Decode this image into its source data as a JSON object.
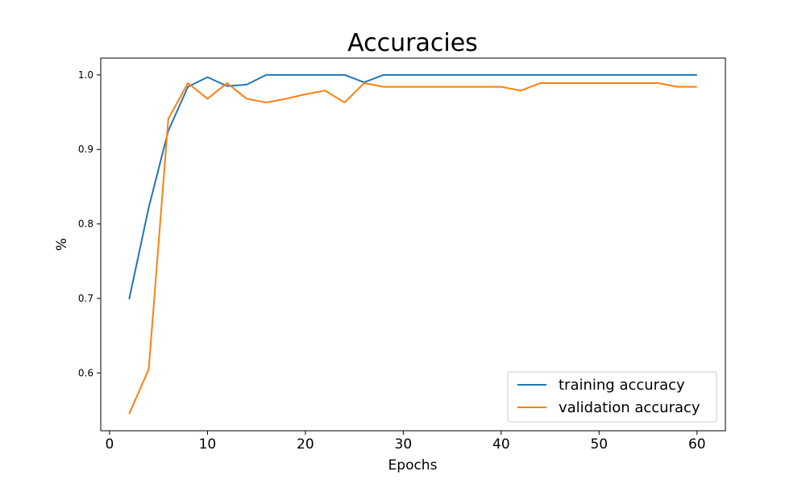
{
  "chart_data": {
    "type": "line",
    "title": "Accuracies",
    "xlabel": "Epochs",
    "ylabel": "%",
    "xlim": [
      -0.9,
      62.9
    ],
    "ylim": [
      0.5224,
      1.0226
    ],
    "xticks": [
      0,
      10,
      20,
      30,
      40,
      50,
      60
    ],
    "yticks": [
      0.6,
      0.7,
      0.8,
      0.9,
      1.0
    ],
    "ytick_format": 1,
    "grid": false,
    "legend_position": "lower-right",
    "x": [
      2,
      4,
      6,
      8,
      10,
      12,
      14,
      16,
      18,
      20,
      22,
      24,
      26,
      28,
      30,
      32,
      34,
      36,
      38,
      40,
      42,
      44,
      46,
      48,
      50,
      52,
      54,
      56,
      58,
      60
    ],
    "series": [
      {
        "name": "training accuracy",
        "color": "#1f77b4",
        "values": [
          0.699,
          0.822,
          0.925,
          0.984,
          0.997,
          0.985,
          0.987,
          1.0,
          1.0,
          1.0,
          1.0,
          1.0,
          0.99,
          1.0,
          1.0,
          1.0,
          1.0,
          1.0,
          1.0,
          1.0,
          1.0,
          1.0,
          1.0,
          1.0,
          1.0,
          1.0,
          1.0,
          1.0,
          1.0,
          1.0
        ]
      },
      {
        "name": "validation accuracy",
        "color": "#ff7f0e",
        "values": [
          0.545,
          0.605,
          0.941,
          0.989,
          0.968,
          0.989,
          0.968,
          0.963,
          0.968,
          0.974,
          0.979,
          0.963,
          0.989,
          0.984,
          0.984,
          0.984,
          0.984,
          0.984,
          0.984,
          0.984,
          0.979,
          0.989,
          0.989,
          0.989,
          0.989,
          0.989,
          0.989,
          0.989,
          0.984,
          0.984
        ]
      }
    ]
  }
}
